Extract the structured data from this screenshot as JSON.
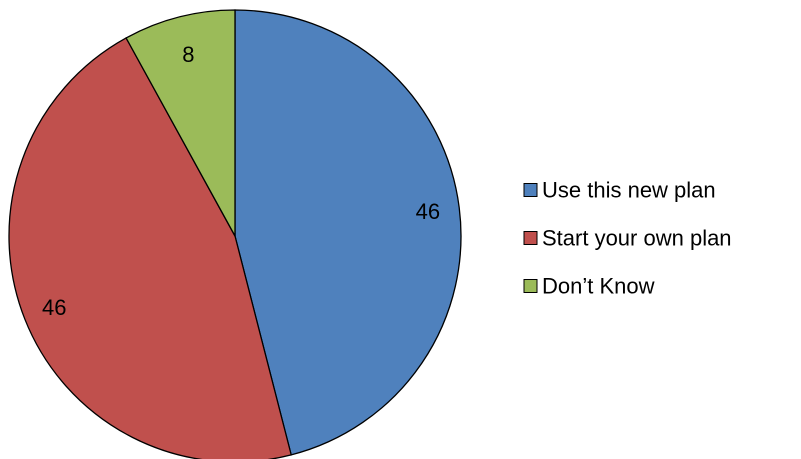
{
  "chart_data": {
    "type": "pie",
    "title": "",
    "categories": [
      "Use this new plan",
      "Start your own plan",
      "Don’t Know"
    ],
    "values": [
      46,
      46,
      8
    ],
    "colors": [
      "#4F81BD",
      "#C0504D",
      "#9BBB59"
    ],
    "legend_position": "right",
    "start": "12 o'clock",
    "direction": "clockwise"
  }
}
